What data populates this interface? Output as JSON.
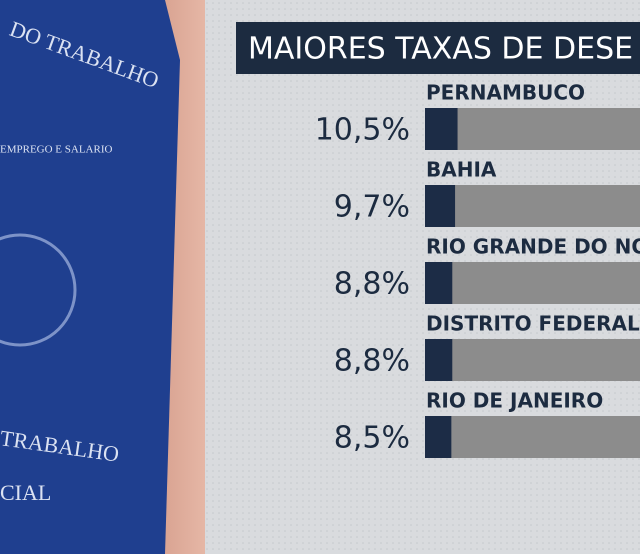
{
  "chart_data": {
    "type": "bar",
    "orientation": "horizontal",
    "title": "MAIORES TAXAS DE DESE",
    "categories": [
      "PERNAMBUCO",
      "BAHIA",
      "RIO GRANDE DO NO",
      "DISTRITO FEDERAL",
      "RIO DE JANEIRO"
    ],
    "values": [
      10.5,
      9.7,
      8.8,
      8.8,
      8.5
    ],
    "value_labels": [
      "10,5%",
      "9,7%",
      "8,8%",
      "8,8%",
      "8,5%"
    ],
    "color": "#1c2c46",
    "track_color": "#8c8c8c",
    "xlim": [
      0,
      100
    ]
  },
  "photo": {
    "texts": [
      "DO TRABALHO",
      "EMPREGO E SALARIO",
      "TRABALHO",
      "CIAL"
    ]
  }
}
